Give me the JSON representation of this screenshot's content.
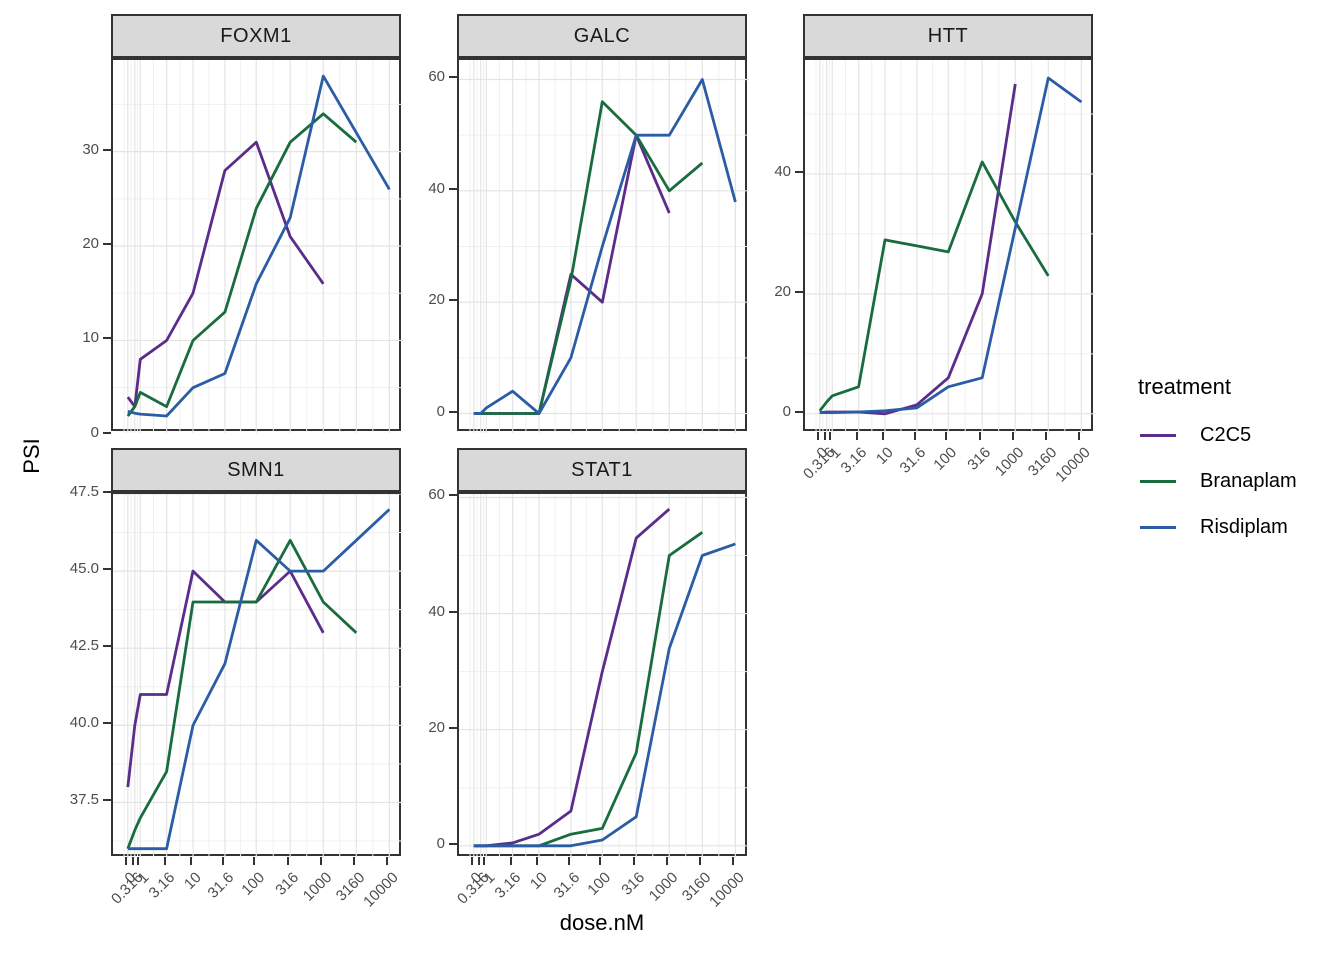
{
  "figure": {
    "background": "#FFFFFF"
  },
  "chart_data": {
    "type": "line",
    "facet_titles": [
      "FOXM1",
      "GALC",
      "HTT",
      "SMN1",
      "STAT1"
    ],
    "x": {
      "label": "dose.nM",
      "scale": "pseudo-log",
      "doses": [
        0,
        0.316,
        1,
        3.16,
        10,
        31.6,
        100,
        316,
        1000,
        3160,
        10000
      ],
      "tick_labels": [
        "0",
        "0.316",
        "1",
        "3.16",
        "10",
        "31.6",
        "100",
        "316",
        "1000",
        "3160",
        "10000"
      ]
    },
    "y_label": "PSI",
    "legend": {
      "title": "treatment",
      "position": "right",
      "entries": [
        {
          "name": "C2C5",
          "color": "#5B2C8A"
        },
        {
          "name": "Branaplam",
          "color": "#186C3D"
        },
        {
          "name": "Risdiplam",
          "color": "#2B5CA5"
        }
      ]
    },
    "panels": [
      {
        "title": "FOXM1",
        "row": 0,
        "col": 0,
        "show_x_axis": false,
        "y_ticks": [
          0,
          10,
          20,
          30
        ],
        "y_tick_labels": [
          "0",
          "10",
          "20",
          "30"
        ],
        "ylim": [
          0.2,
          39.7
        ],
        "series": [
          {
            "name": "C2C5",
            "values": [
              4,
              3,
              8,
              10,
              15,
              28,
              31,
              21,
              16
            ]
          },
          {
            "name": "Branaplam",
            "values": [
              2,
              3,
              4.5,
              3,
              10,
              13,
              24,
              31,
              34,
              31
            ]
          },
          {
            "name": "Risdiplam",
            "values": [
              2.5,
              2.3,
              2.2,
              2,
              5,
              6.5,
              16,
              23,
              38,
              32,
              26
            ]
          }
        ]
      },
      {
        "title": "GALC",
        "row": 0,
        "col": 1,
        "show_x_axis": false,
        "y_ticks": [
          0,
          20,
          40,
          60
        ],
        "y_tick_labels": [
          "0",
          "20",
          "40",
          "60"
        ],
        "ylim": [
          -3.5,
          63.5
        ],
        "series": [
          {
            "name": "C2C5",
            "values": [
              0,
              0,
              0,
              0,
              0,
              25,
              20,
              50,
              36
            ]
          },
          {
            "name": "Branaplam",
            "values": [
              0,
              0,
              0,
              0,
              0,
              24,
              56,
              50,
              40,
              45
            ]
          },
          {
            "name": "Risdiplam",
            "values": [
              0,
              0,
              1,
              4,
              0,
              10,
              30,
              50,
              50,
              60,
              38
            ]
          }
        ]
      },
      {
        "title": "HTT",
        "row": 0,
        "col": 2,
        "show_x_axis": true,
        "y_ticks": [
          0,
          20,
          40
        ],
        "y_tick_labels": [
          "0",
          "20",
          "40"
        ],
        "ylim": [
          -3.2,
          59
        ],
        "series": [
          {
            "name": "C2C5",
            "values": [
              0.2,
              0.3,
              0.3,
              0.3,
              0,
              1.5,
              6,
              20,
              55
            ]
          },
          {
            "name": "Branaplam",
            "values": [
              0.5,
              2,
              3,
              4.5,
              29,
              28,
              27,
              42,
              32,
              23
            ]
          },
          {
            "name": "Risdiplam",
            "values": [
              0.2,
              0.2,
              0.2,
              0.3,
              0.5,
              1,
              4.5,
              6,
              31,
              56,
              52
            ]
          }
        ]
      },
      {
        "title": "SMN1",
        "row": 1,
        "col": 0,
        "show_x_axis": true,
        "y_ticks": [
          37.5,
          40,
          42.5,
          45,
          47.5
        ],
        "y_tick_labels": [
          "37.5",
          "40.0",
          "42.5",
          "45.0",
          "47.5"
        ],
        "ylim": [
          35.7,
          47.5
        ],
        "series": [
          {
            "name": "C2C5",
            "values": [
              38,
              40,
              41,
              41,
              45,
              44,
              44,
              45,
              43
            ]
          },
          {
            "name": "Branaplam",
            "values": [
              36,
              36.6,
              37,
              38.5,
              44,
              44,
              44,
              46,
              44,
              43
            ]
          },
          {
            "name": "Risdiplam",
            "values": [
              36,
              36,
              36,
              36,
              40,
              42,
              46,
              45,
              45,
              46,
              47
            ]
          }
        ]
      },
      {
        "title": "STAT1",
        "row": 1,
        "col": 1,
        "show_x_axis": true,
        "y_ticks": [
          0,
          20,
          40,
          60
        ],
        "y_tick_labels": [
          "0",
          "20",
          "40",
          "60"
        ],
        "ylim": [
          -2.1,
          60.6
        ],
        "series": [
          {
            "name": "C2C5",
            "values": [
              0,
              0,
              0,
              0.5,
              2,
              6,
              30,
              53,
              58
            ]
          },
          {
            "name": "Branaplam",
            "values": [
              0,
              0,
              0,
              0,
              0,
              2,
              3,
              16,
              50,
              54
            ]
          },
          {
            "name": "Risdiplam",
            "values": [
              0,
              0,
              0,
              0,
              0,
              0,
              1,
              5,
              34,
              50,
              52
            ]
          }
        ]
      }
    ],
    "style": {
      "strip_fill": "#D9D9D9",
      "strip_border": "#333333",
      "panel_border": "#333333",
      "grid_major": "#E4E4E4",
      "grid_minor": "#F0F0F0",
      "tick_color": "#333333",
      "axis_text_color": "#4D4D4D"
    }
  }
}
